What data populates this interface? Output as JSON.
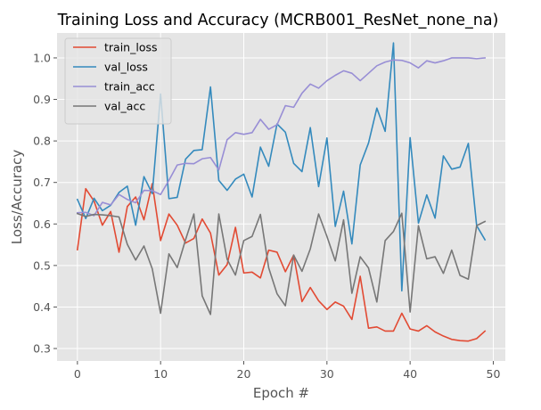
{
  "chart_data": {
    "type": "line",
    "title": "Training Loss and Accuracy (MCRB001_ResNet_none_na)",
    "xlabel": "Epoch #",
    "ylabel": "Loss/Accuracy",
    "xlim": [
      -2.45,
      51.45
    ],
    "ylim": [
      0.27,
      1.06
    ],
    "xticks": [
      0,
      10,
      20,
      30,
      40,
      50
    ],
    "yticks": [
      0.3,
      0.4,
      0.5,
      0.6,
      0.7,
      0.8,
      0.9,
      1.0
    ],
    "xtick_labels": [
      "0",
      "10",
      "20",
      "30",
      "40",
      "50"
    ],
    "ytick_labels": [
      "0.3",
      "0.4",
      "0.5",
      "0.6",
      "0.7",
      "0.8",
      "0.9",
      "1.0"
    ],
    "grid": true,
    "legend_position": "upper-left",
    "x": [
      0,
      1,
      2,
      3,
      4,
      5,
      6,
      7,
      8,
      9,
      10,
      11,
      12,
      13,
      14,
      15,
      16,
      17,
      18,
      19,
      20,
      21,
      22,
      23,
      24,
      25,
      26,
      27,
      28,
      29,
      30,
      31,
      32,
      33,
      34,
      35,
      36,
      37,
      38,
      39,
      40,
      41,
      42,
      43,
      44,
      45,
      46,
      47,
      48,
      49
    ],
    "series": [
      {
        "name": "train_loss",
        "color": "#E24A33",
        "values": [
          0.538,
          0.685,
          0.655,
          0.597,
          0.63,
          0.532,
          0.642,
          0.665,
          0.61,
          0.697,
          0.56,
          0.624,
          0.597,
          0.554,
          0.565,
          0.612,
          0.578,
          0.477,
          0.502,
          0.592,
          0.482,
          0.484,
          0.47,
          0.537,
          0.532,
          0.485,
          0.525,
          0.413,
          0.447,
          0.415,
          0.394,
          0.412,
          0.402,
          0.37,
          0.474,
          0.349,
          0.352,
          0.342,
          0.342,
          0.385,
          0.347,
          0.342,
          0.355,
          0.34,
          0.33,
          0.322,
          0.319,
          0.318,
          0.324,
          0.342
        ]
      },
      {
        "name": "val_loss",
        "color": "#348ABD",
        "values": [
          0.659,
          0.613,
          0.662,
          0.632,
          0.645,
          0.676,
          0.691,
          0.597,
          0.714,
          0.673,
          0.913,
          0.661,
          0.664,
          0.756,
          0.777,
          0.779,
          0.93,
          0.705,
          0.681,
          0.708,
          0.72,
          0.665,
          0.785,
          0.739,
          0.841,
          0.821,
          0.746,
          0.726,
          0.832,
          0.69,
          0.807,
          0.594,
          0.679,
          0.552,
          0.742,
          0.795,
          0.879,
          0.823,
          1.036,
          0.439,
          0.808,
          0.602,
          0.67,
          0.614,
          0.764,
          0.732,
          0.737,
          0.794,
          0.596,
          0.562
        ]
      },
      {
        "name": "train_acc",
        "color": "#988ED5",
        "values": [
          0.627,
          0.628,
          0.62,
          0.652,
          0.646,
          0.671,
          0.659,
          0.651,
          0.681,
          0.68,
          0.671,
          0.705,
          0.742,
          0.746,
          0.745,
          0.757,
          0.76,
          0.73,
          0.803,
          0.82,
          0.816,
          0.82,
          0.852,
          0.828,
          0.839,
          0.885,
          0.881,
          0.915,
          0.937,
          0.927,
          0.945,
          0.958,
          0.969,
          0.963,
          0.945,
          0.963,
          0.981,
          0.99,
          0.995,
          0.994,
          0.988,
          0.976,
          0.993,
          0.988,
          0.993,
          1.0,
          1.0,
          1.0,
          0.998,
          1.0
        ]
      },
      {
        "name": "val_acc",
        "color": "#777777",
        "values": [
          0.625,
          0.618,
          0.623,
          0.622,
          0.62,
          0.617,
          0.551,
          0.513,
          0.547,
          0.492,
          0.385,
          0.528,
          0.495,
          0.562,
          0.624,
          0.427,
          0.382,
          0.624,
          0.515,
          0.477,
          0.56,
          0.57,
          0.623,
          0.494,
          0.432,
          0.403,
          0.525,
          0.486,
          0.54,
          0.624,
          0.57,
          0.511,
          0.61,
          0.433,
          0.521,
          0.494,
          0.412,
          0.56,
          0.582,
          0.626,
          0.388,
          0.596,
          0.516,
          0.521,
          0.481,
          0.537,
          0.476,
          0.467,
          0.596,
          0.606
        ]
      }
    ]
  }
}
